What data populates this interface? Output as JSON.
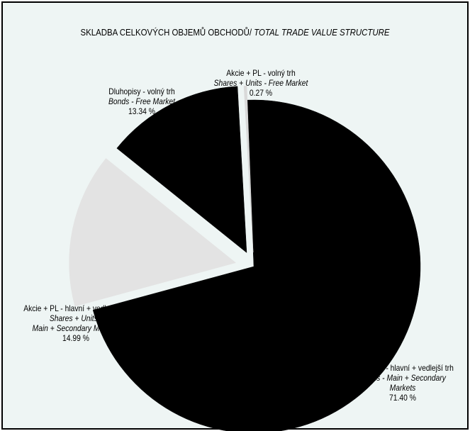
{
  "chart_data": {
    "type": "pie",
    "title_cz": "SKLADBA CELKOVÝCH OBJEMŮ OBCHODŮ/ ",
    "title_en": "TOTAL TRADE VALUE STRUCTURE",
    "slices": [
      {
        "label_cz": "Dluhopisy - hlavní + vedlejší trh",
        "label_en_1": "Bonds - Main + Secondary",
        "label_en_2": "Markets",
        "value": 71.4,
        "value_label": "71.40 %",
        "color": "#000000"
      },
      {
        "label_cz": "Akcie + PL - hlavní + vedlejší trh",
        "label_en_1": "Shares + Units -",
        "label_en_2": "Main + Secondary Markets",
        "value": 14.99,
        "value_label": "14.99 %",
        "color": "#e3e3e3"
      },
      {
        "label_cz": "Dluhopisy - volný trh",
        "label_en_1": "Bonds - Free Market",
        "label_en_2": "",
        "value": 13.34,
        "value_label": "13.34 %",
        "color": "#000000"
      },
      {
        "label_cz": "Akcie + PL - volný trh",
        "label_en_1": "Shares + Units - Free Market",
        "label_en_2": "",
        "value": 0.27,
        "value_label": "0.27 %",
        "color": "#d9d9d9"
      }
    ]
  }
}
